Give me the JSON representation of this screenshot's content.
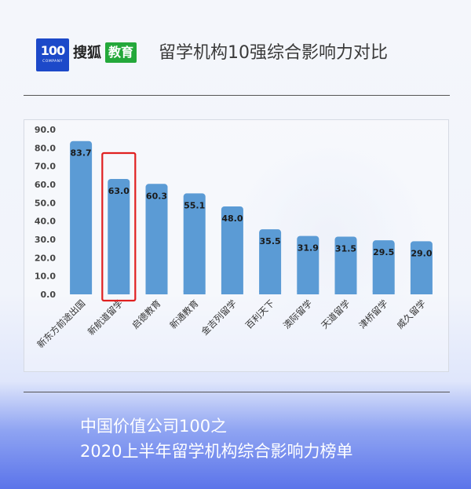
{
  "brand": {
    "logo_number": "100",
    "logo_caption": "COMPANY",
    "sohu_text": "搜狐",
    "edu_text": "教育"
  },
  "header": {
    "title": "留学机构10强综合影响力对比"
  },
  "footer": {
    "line1": "中国价值公司100之",
    "line2": "2020上半年留学机构综合影响力榜单"
  },
  "colors": {
    "bar": "#5b9bd5",
    "highlight_box": "#e02020",
    "axis_text": "#444444"
  },
  "chart_data": {
    "type": "bar",
    "title": "",
    "xlabel": "",
    "ylabel": "",
    "ylim": [
      0,
      90
    ],
    "yticks": [
      "0.0",
      "10.0",
      "20.0",
      "30.0",
      "40.0",
      "50.0",
      "60.0",
      "70.0",
      "80.0",
      "90.0"
    ],
    "grid": false,
    "categories": [
      "新东方前途出国",
      "新航道留学",
      "启德教育",
      "新通教育",
      "金吉列留学",
      "百利天下",
      "澳际留学",
      "天道留学",
      "津桥留学",
      "威久留学"
    ],
    "values": [
      83.7,
      63.0,
      60.3,
      55.1,
      48.0,
      35.5,
      31.9,
      31.5,
      29.5,
      29.0
    ],
    "value_labels": [
      "83.7",
      "63.0",
      "60.3",
      "55.1",
      "48.0",
      "35.5",
      "31.9",
      "31.5",
      "29.5",
      "29.0"
    ],
    "highlighted_category": "新航道留学"
  }
}
